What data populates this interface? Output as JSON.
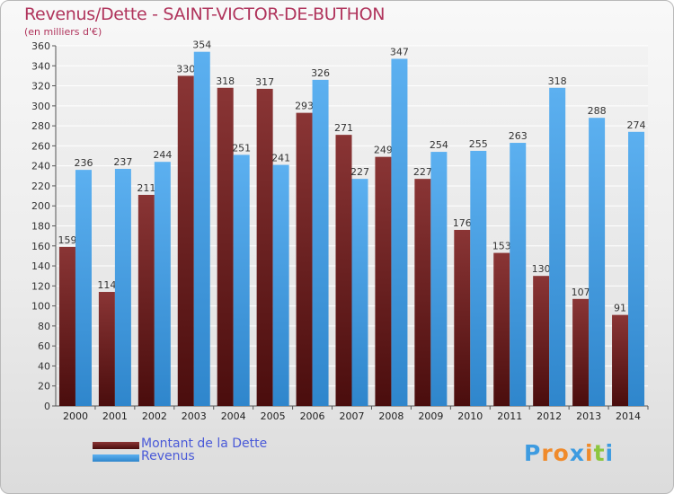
{
  "chart_data": {
    "type": "bar",
    "title": "Revenus/Dette - SAINT-VICTOR-DE-BUTHON",
    "subtitle": "(en milliers d'€)",
    "categories": [
      "2000",
      "2001",
      "2002",
      "2003",
      "2004",
      "2005",
      "2006",
      "2007",
      "2008",
      "2009",
      "2010",
      "2011",
      "2012",
      "2013",
      "2014"
    ],
    "series": [
      {
        "name": "Montant de la Dette",
        "color": "#7a2a2a",
        "values": [
          159,
          114,
          211,
          330,
          318,
          317,
          293,
          271,
          249,
          227,
          176,
          153,
          130,
          107,
          91
        ]
      },
      {
        "name": "Revenus",
        "color": "#4aa3e6",
        "values": [
          236,
          237,
          244,
          354,
          251,
          241,
          326,
          227,
          347,
          254,
          255,
          263,
          318,
          288,
          274
        ]
      }
    ],
    "ylim": [
      0,
      360
    ],
    "ytick_step": 20,
    "grid": true,
    "legend_position": "bottom-left"
  },
  "logo": {
    "text": "Proxiti",
    "letters": [
      "P",
      "r",
      "o",
      "x",
      "i",
      "t",
      "i"
    ],
    "colors": [
      "#3d9be0",
      "#f08a2a",
      "#f08a2a",
      "#3d9be0",
      "#f08a2a",
      "#8cc63f",
      "#3d9be0"
    ]
  }
}
